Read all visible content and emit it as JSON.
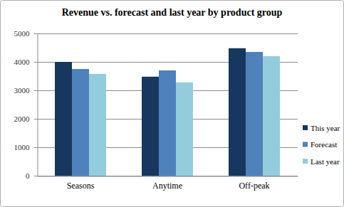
{
  "chart_data": {
    "type": "bar",
    "title": "Revenue vs. forecast and last year by product group",
    "categories": [
      "Seasons",
      "Anytime",
      "Off-peak"
    ],
    "series": [
      {
        "name": "This year",
        "color": "#17375e",
        "values": [
          4000,
          3480,
          4480
        ]
      },
      {
        "name": "Forecast",
        "color": "#4f81bd",
        "values": [
          3750,
          3700,
          4350
        ]
      },
      {
        "name": "Last year",
        "color": "#93cddd",
        "values": [
          3580,
          3280,
          4200
        ]
      }
    ],
    "ylim": [
      0,
      5000
    ],
    "yticks": [
      0,
      1000,
      2000,
      3000,
      4000,
      5000
    ],
    "grid": true,
    "legend": "right"
  }
}
